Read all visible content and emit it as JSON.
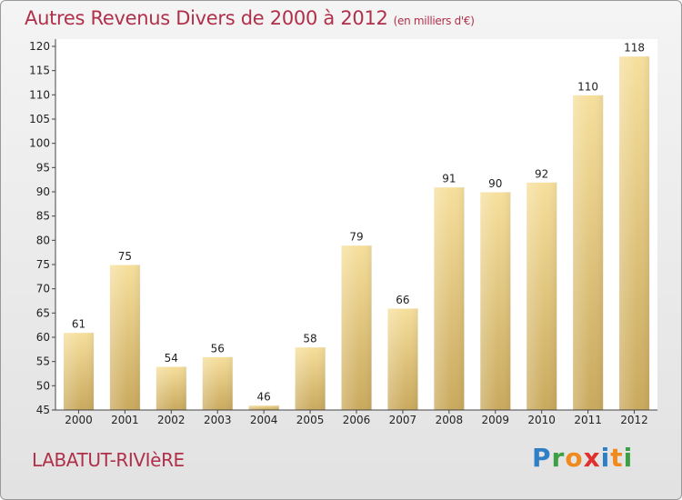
{
  "header": {
    "title": "Autres Revenus Divers de 2000 à 2012",
    "subtitle": "(en milliers d'€)"
  },
  "footer": {
    "commune": "LABATUT-RIVIèRE",
    "logo": [
      "P",
      "r",
      "o",
      "x",
      "i",
      "t",
      "i"
    ],
    "logo_colors": [
      "#2f7fc6",
      "#3aa043",
      "#f08a1e",
      "#e0312e",
      "#2f7fc6",
      "#f08a1e",
      "#3aa043"
    ]
  },
  "chart_data": {
    "type": "bar",
    "title": "Autres Revenus Divers de 2000 à 2012",
    "subtitle": "(en milliers d'€)",
    "categories": [
      "2000",
      "2001",
      "2002",
      "2003",
      "2004",
      "2005",
      "2006",
      "2007",
      "2008",
      "2009",
      "2010",
      "2011",
      "2012"
    ],
    "values": [
      61,
      75,
      54,
      56,
      46,
      58,
      79,
      66,
      91,
      90,
      92,
      110,
      118
    ],
    "ylim": [
      45,
      120
    ],
    "yticks": [
      45,
      50,
      55,
      60,
      65,
      70,
      75,
      80,
      85,
      90,
      95,
      100,
      105,
      110,
      115,
      120
    ],
    "grid": false,
    "bar_color": "#e3c880",
    "title_color": "#b0304a"
  }
}
